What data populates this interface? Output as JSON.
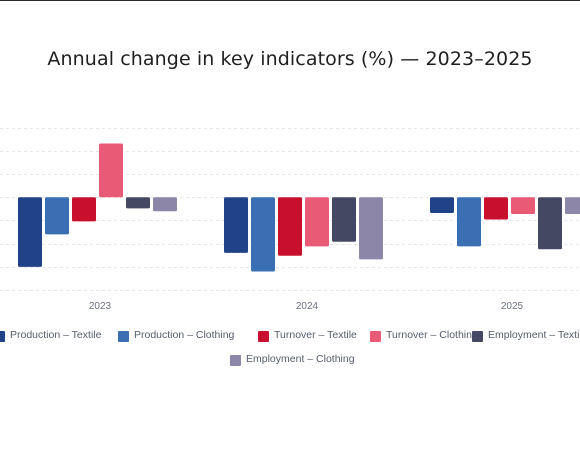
{
  "chart_data": {
    "type": "bar",
    "title": "Annual change in key indicators (%) — 2023–2025",
    "xlabel": "",
    "ylabel": "",
    "categories": [
      "2023",
      "2024",
      "2025"
    ],
    "series": [
      {
        "name": "Production – Textile",
        "color": "#1f4386",
        "values": [
          -7.5,
          -6.0,
          -1.7
        ]
      },
      {
        "name": "Production – Clothing",
        "color": "#3b6fb3",
        "values": [
          -4.0,
          -8.0,
          -5.3
        ]
      },
      {
        "name": "Turnover – Textile",
        "color": "#c8102e",
        "values": [
          -2.6,
          -6.3,
          -2.4
        ]
      },
      {
        "name": "Turnover – Clothing",
        "color": "#e85a75",
        "values": [
          5.8,
          -5.3,
          -1.8
        ]
      },
      {
        "name": "Employment – Textile",
        "color": "#454862",
        "values": [
          -1.2,
          -4.8,
          -5.6
        ]
      },
      {
        "name": "Employment – Clothing",
        "color": "#8c87a8",
        "values": [
          -1.5,
          -6.7,
          -1.8
        ]
      }
    ],
    "ylim": [
      -10,
      7.8
    ],
    "grid": true,
    "legend_position": "bottom"
  }
}
